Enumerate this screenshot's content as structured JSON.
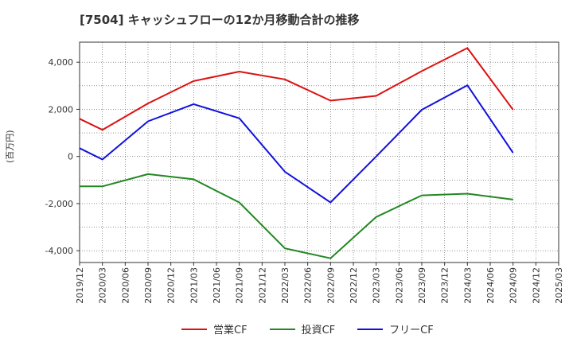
{
  "chart_data": {
    "type": "line",
    "title": "[7504]  キャッシュフローの12か月移動合計の推移",
    "ylabel": "(百万円)",
    "xlabel": "",
    "ylim": [
      -4500,
      4850
    ],
    "yticks": [
      4000,
      2000,
      0,
      -2000,
      -4000
    ],
    "ytick_labels": [
      "4,000",
      "2,000",
      "0",
      "-2,000",
      "-4,000"
    ],
    "categories": [
      "2019/12",
      "2020/03",
      "2020/06",
      "2020/09",
      "2020/12",
      "2021/03",
      "2021/06",
      "2021/09",
      "2021/12",
      "2022/03",
      "2022/06",
      "2022/09",
      "2022/12",
      "2023/03",
      "2023/06",
      "2023/09",
      "2023/12",
      "2024/03",
      "2024/06",
      "2024/09",
      "2024/12",
      "2025/03"
    ],
    "grid": true,
    "legend_position": "bottom",
    "series": [
      {
        "name": "営業CF",
        "color": "#dd1111",
        "values": [
          1600,
          1130,
          null,
          2250,
          null,
          3200,
          null,
          3600,
          null,
          3270,
          null,
          2370,
          null,
          2570,
          null,
          3620,
          null,
          4600,
          null,
          1980,
          null,
          null
        ]
      },
      {
        "name": "投資CF",
        "color": "#228822",
        "values": [
          -1270,
          -1270,
          null,
          -750,
          null,
          -970,
          null,
          -1950,
          null,
          -3900,
          null,
          -4320,
          null,
          -2570,
          null,
          -1650,
          null,
          -1580,
          null,
          -1830,
          null,
          null
        ]
      },
      {
        "name": "フリーCF",
        "color": "#1111dd",
        "values": [
          350,
          -130,
          null,
          1490,
          null,
          2220,
          null,
          1620,
          null,
          -650,
          null,
          -1950,
          null,
          0,
          null,
          1980,
          null,
          3020,
          null,
          150,
          null,
          null
        ]
      }
    ]
  }
}
